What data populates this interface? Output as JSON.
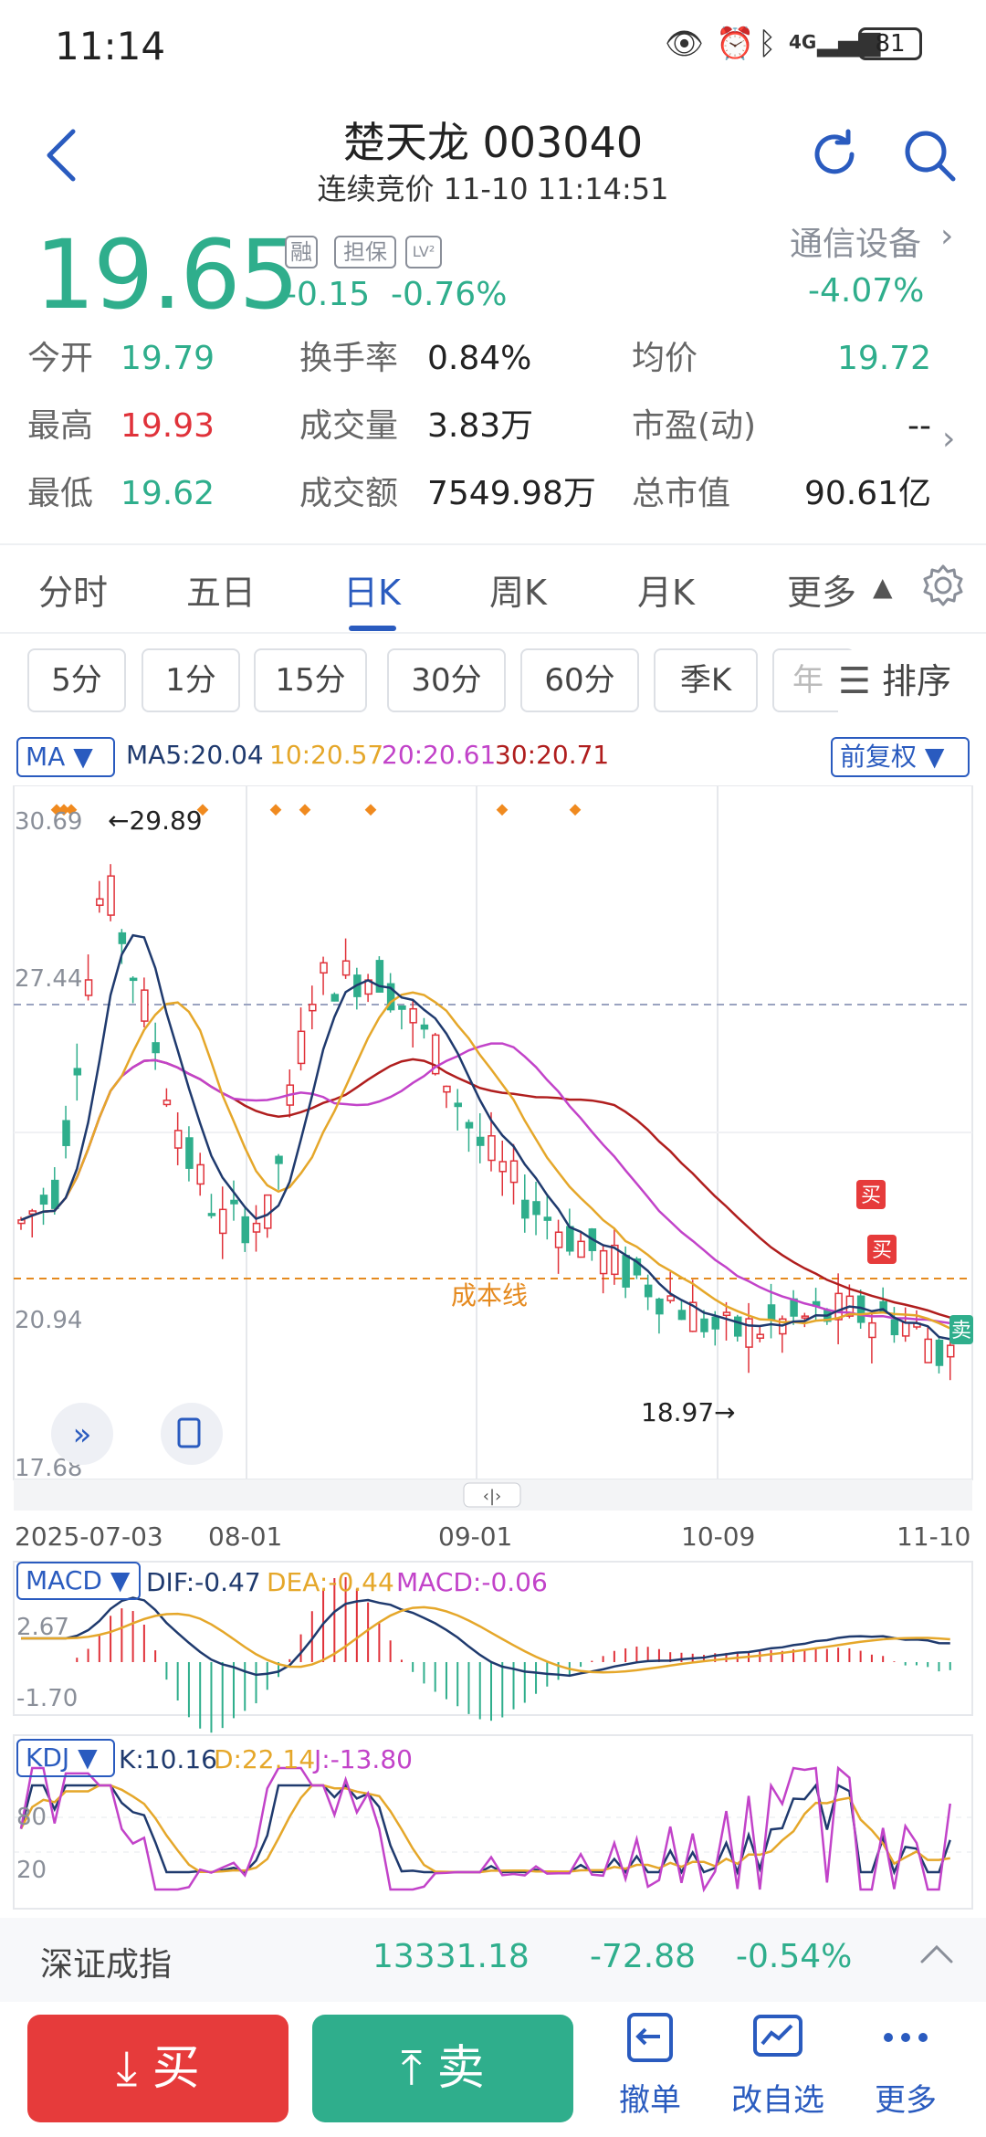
{
  "status_bar": {
    "time": "11:14",
    "battery": "81",
    "network": "4G"
  },
  "header": {
    "title": "楚天龙 003040",
    "subtitle": "连续竞价 11-10 11:14:51"
  },
  "quote": {
    "price": "19.65",
    "tags": [
      "融",
      "担保",
      "LV²"
    ],
    "change": "-0.15",
    "change_pct": "-0.76%",
    "industry": "通信设备",
    "industry_change": "-4.07%",
    "stats": [
      {
        "label": "今开",
        "value": "19.79",
        "color": "#2fae8c"
      },
      {
        "label": "换手率",
        "value": "0.84%"
      },
      {
        "label": "均价",
        "value": "19.72",
        "color": "#2fae8c"
      },
      {
        "label": "最高",
        "value": "19.93",
        "color": "#e0323a"
      },
      {
        "label": "成交量",
        "value": "3.83万"
      },
      {
        "label": "市盈(动)",
        "value": "--"
      },
      {
        "label": "最低",
        "value": "19.62",
        "color": "#2fae8c"
      },
      {
        "label": "成交额",
        "value": "7549.98万"
      },
      {
        "label": "总市值",
        "value": "90.61亿"
      }
    ]
  },
  "tabs": [
    "分时",
    "五日",
    "日K",
    "周K",
    "月K",
    "更多"
  ],
  "active_tab": "日K",
  "periods": [
    "5分",
    "1分",
    "15分",
    "30分",
    "60分",
    "季K",
    "年"
  ],
  "sort_label": "排序",
  "chart": {
    "indicator": "MA",
    "ma_values": {
      "ma5": "MA5:20.04",
      "ma10": "10:20.57",
      "ma20": "20:20.61",
      "ma30": "30:20.71"
    },
    "adjust": "前复权",
    "y_ticks": [
      "30.69",
      "27.44",
      "20.94",
      "17.68"
    ],
    "cost_line_label": "成本线",
    "high_label": "←29.89",
    "low_label": "18.97→",
    "buy_mark": "买",
    "sell_mark": "卖",
    "x_ticks": [
      "2025-07-03",
      "08-01",
      "09-01",
      "10-09",
      "11-10"
    ],
    "colors": {
      "up": "#e0323a",
      "down": "#2fae8c",
      "ma5": "#1f3a6e",
      "ma10": "#e5a72a",
      "ma20": "#c243c9",
      "ma30": "#b01e1e",
      "cost": "#e58a1f"
    }
  },
  "macd": {
    "name": "MACD",
    "dif": "DIF:-0.47",
    "dea": "DEA:-0.44",
    "macd": "MACD:-0.06",
    "y_ticks": [
      "2.67",
      "-1.70"
    ]
  },
  "kdj": {
    "name": "KDJ",
    "k": "K:10.16",
    "d": "D:22.14",
    "j": "J:-13.80",
    "y_ticks": [
      "80",
      "20"
    ]
  },
  "index": {
    "name": "深证成指",
    "value": "13331.18",
    "change": "-72.88",
    "change_pct": "-0.54%"
  },
  "bottom": {
    "buy": "买",
    "sell": "卖",
    "cancel": "撤单",
    "edit": "改自选",
    "more": "更多"
  }
}
